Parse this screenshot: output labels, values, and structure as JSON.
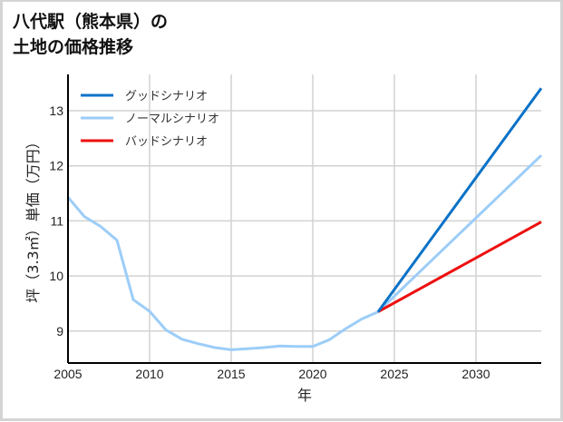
{
  "title": {
    "line1": "八代駅（熊本県）の",
    "line2": "土地の価格推移"
  },
  "colors": {
    "good": "#0a72c8",
    "normal": "#9ccdf8",
    "bad": "#ee0f0f",
    "grid": "#d2d2d2",
    "axis": "#000000"
  },
  "chart_data": {
    "type": "line",
    "title": "八代駅（熊本県）の土地の価格推移",
    "xlabel": "年",
    "ylabel": "坪（3.3㎡）単価（万円）",
    "xlim": [
      2005,
      2034
    ],
    "ylim": [
      8.42,
      13.66
    ],
    "xticks": [
      2005,
      2010,
      2015,
      2020,
      2025,
      2030
    ],
    "yticks": [
      9,
      10,
      11,
      12,
      13
    ],
    "grid": true,
    "legend_position": "upper left",
    "series": [
      {
        "name": "グッドシナリオ",
        "color": "#0a72c8",
        "x": [
          2024,
          2034
        ],
        "y": [
          9.35,
          13.41
        ]
      },
      {
        "name": "ノーマルシナリオ",
        "color": "#9ccdf8",
        "x": [
          2005,
          2006,
          2007,
          2008,
          2009,
          2010,
          2011,
          2012,
          2013,
          2014,
          2015,
          2016,
          2017,
          2018,
          2019,
          2020,
          2021,
          2022,
          2023,
          2024,
          2034
        ],
        "y": [
          11.43,
          11.08,
          10.9,
          10.65,
          9.57,
          9.36,
          9.02,
          8.85,
          8.77,
          8.7,
          8.66,
          8.68,
          8.7,
          8.73,
          8.72,
          8.72,
          8.84,
          9.04,
          9.22,
          9.35,
          12.19
        ]
      },
      {
        "name": "バッドシナリオ",
        "color": "#ee0f0f",
        "x": [
          2024,
          2034
        ],
        "y": [
          9.35,
          10.98
        ]
      }
    ]
  }
}
